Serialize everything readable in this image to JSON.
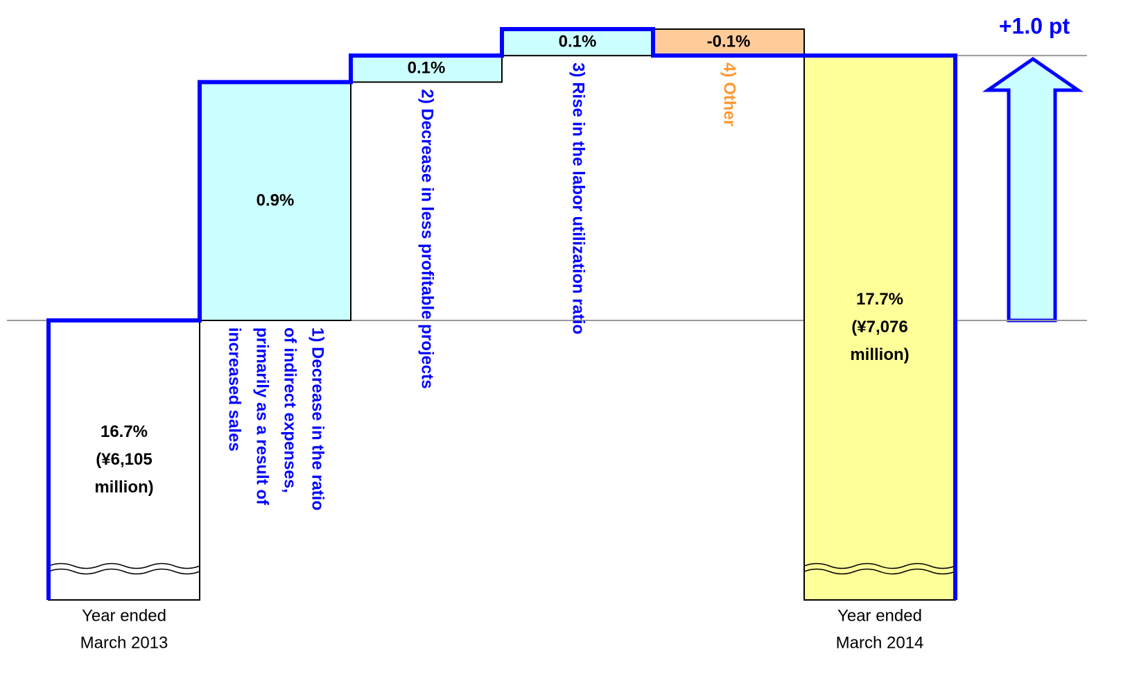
{
  "chart_data": {
    "type": "waterfall",
    "annotation": "+1.0 pt",
    "categories": [
      [
        "Year ended",
        "March 2013"
      ],
      [
        "1) Decrease in the ratio",
        "of indirect expenses,",
        "primarily as a result of",
        "increased sales"
      ],
      [
        "2) Decrease in less profitable projects"
      ],
      [
        "3) Rise in the labor utilization ratio"
      ],
      [
        "4) Other"
      ],
      [
        "Year ended",
        "March 2014"
      ]
    ],
    "measure": [
      "absolute",
      "relative",
      "relative",
      "relative",
      "relative",
      "total"
    ],
    "values": [
      16.7,
      0.9,
      0.1,
      0.1,
      -0.1,
      17.7
    ],
    "value_labels": [
      [
        "16.7%",
        "(¥6,105",
        "million)"
      ],
      [
        "0.9%"
      ],
      [
        "0.1%"
      ],
      [
        "0.1%"
      ],
      [
        "-0.1%"
      ],
      [
        "17.7%",
        "(¥7,076",
        "million)"
      ]
    ],
    "colors": [
      "#ffffff",
      "#ccffff",
      "#ccffff",
      "#ccffff",
      "#ffcc99",
      "#ffff99"
    ],
    "label_colors": [
      "#000000",
      "#0000ff",
      "#0000ff",
      "#0000ff",
      "#ff9933",
      "#000000"
    ],
    "outline_color": "#0000ff"
  }
}
